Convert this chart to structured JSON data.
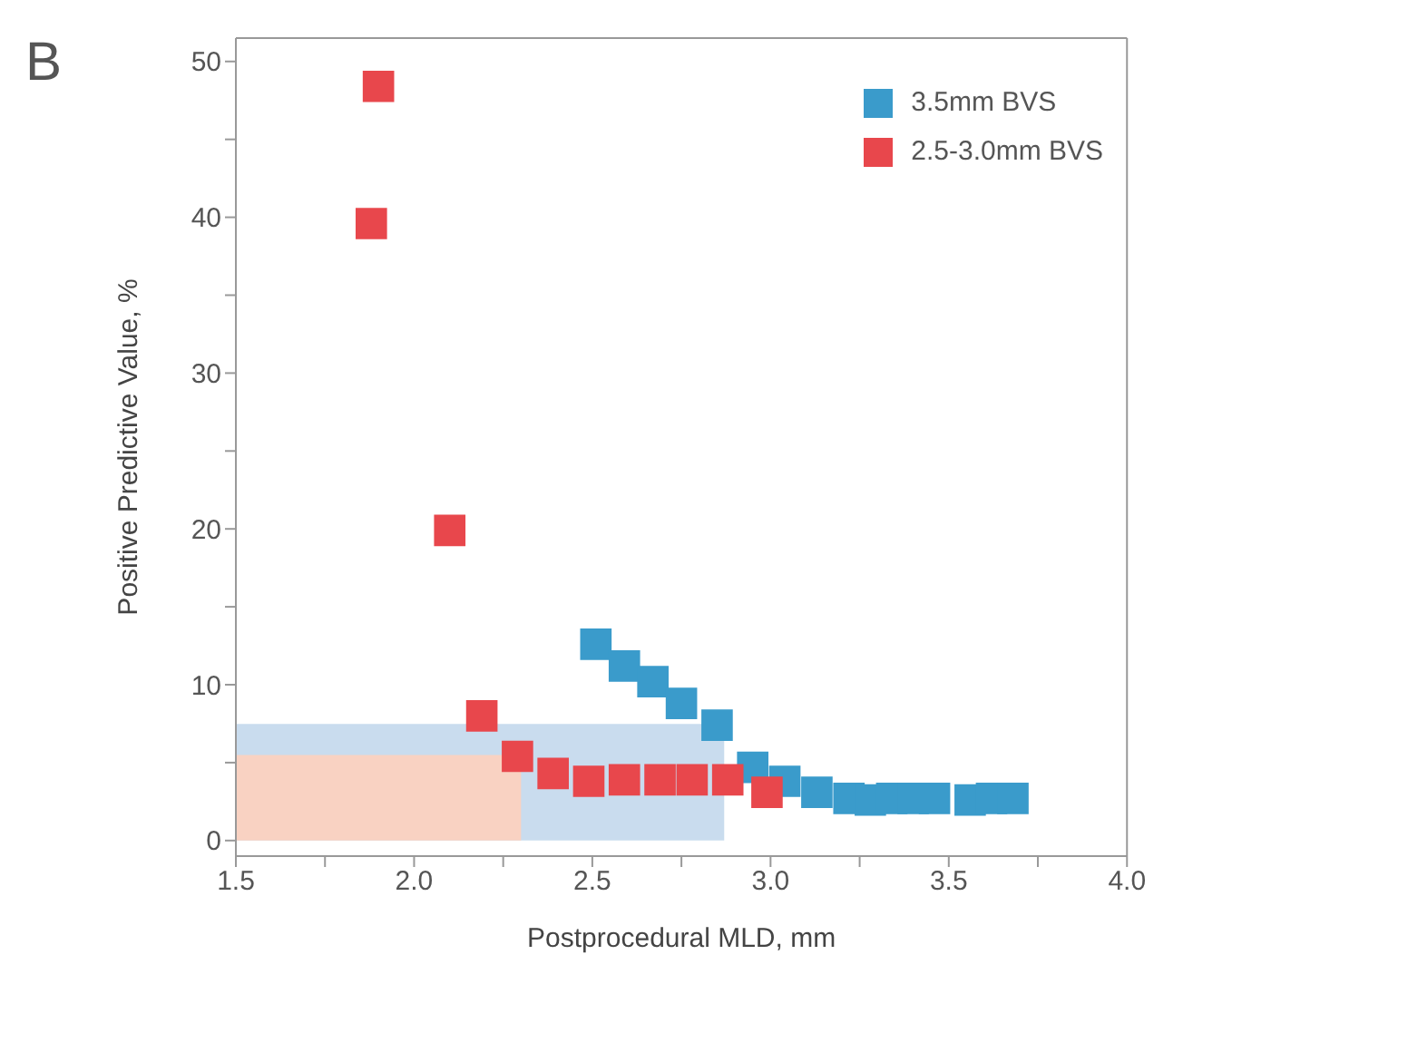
{
  "chart_data": {
    "type": "scatter",
    "title": "B",
    "xlabel": "Postprocedural MLD, mm",
    "ylabel": "Positive Predictive Value, %",
    "xlim": [
      1.5,
      4.0
    ],
    "ylim": [
      -1,
      51.5
    ],
    "xticks": [
      1.5,
      {
        "value": 1.75,
        "label": null
      },
      {
        "value": 2.0,
        "label": "2.0"
      },
      {
        "value": 2.25,
        "label": null
      },
      2.5,
      {
        "value": 2.75,
        "label": null
      },
      {
        "value": 3.0,
        "label": "3.0"
      },
      {
        "value": 3.25,
        "label": null
      },
      3.5,
      {
        "value": 3.75,
        "label": null
      },
      {
        "value": 4.0,
        "label": "4.0"
      }
    ],
    "yticks": [
      0,
      {
        "value": 5,
        "label": null
      },
      10,
      {
        "value": 15,
        "label": null
      },
      20,
      {
        "value": 25,
        "label": null
      },
      30,
      {
        "value": 35,
        "label": null
      },
      40,
      {
        "value": 45,
        "label": null
      },
      50
    ],
    "legend": "top right",
    "marker": "square",
    "grid": false,
    "series": [
      {
        "type": "area",
        "marker": "none",
        "color": "#c9dcee",
        "x": [
          1.5,
          2.87
        ],
        "values": [
          7.4,
          7.4
        ]
      },
      {
        "type": "area",
        "marker": "none",
        "color": "#f9d2c2",
        "x": [
          1.5,
          2.3
        ],
        "values": [
          5.4,
          5.4
        ]
      },
      {
        "name": "3.5mm BVS",
        "color": "#3a9bcb",
        "x": [
          2.51,
          2.59,
          2.67,
          2.75,
          2.85,
          2.95,
          3.04,
          3.13,
          3.22,
          3.28,
          3.34,
          3.4,
          3.46,
          3.56,
          3.62,
          3.68
        ],
        "values": [
          12.6,
          11.2,
          10.2,
          8.8,
          7.4,
          4.7,
          3.8,
          3.1,
          2.7,
          2.6,
          2.7,
          2.7,
          2.7,
          2.6,
          2.7,
          2.7
        ]
      },
      {
        "name": "2.5-3.0mm BVS",
        "color": "#e8474c",
        "x": [
          1.88,
          1.9,
          2.1,
          2.19,
          2.29,
          2.39,
          2.49,
          2.59,
          2.69,
          2.78,
          2.88,
          2.99
        ],
        "values": [
          39.6,
          48.4,
          19.9,
          8.0,
          5.4,
          4.3,
          3.8,
          3.9,
          3.9,
          3.9,
          3.9,
          3.1
        ]
      }
    ]
  }
}
